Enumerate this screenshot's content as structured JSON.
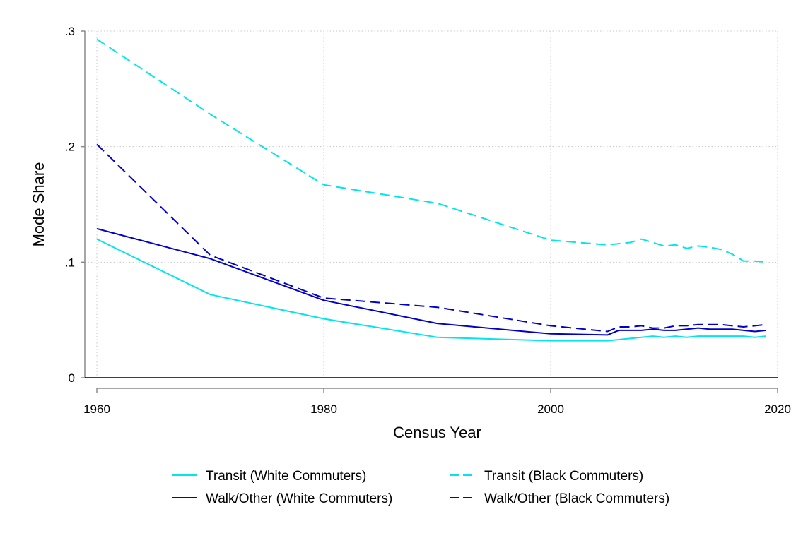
{
  "chart_data": {
    "type": "line",
    "xlabel": "Census Year",
    "ylabel": "Mode Share",
    "xlim": [
      1960,
      2020
    ],
    "ylim": [
      0,
      0.3
    ],
    "xticks": [
      1960,
      1980,
      2000,
      2020
    ],
    "xtick_labels": [
      "1960",
      "1980",
      "2000",
      "2020"
    ],
    "yticks": [
      0,
      0.1,
      0.2,
      0.3
    ],
    "ytick_labels": [
      "0",
      ".1",
      ".2",
      ".3"
    ],
    "grid": true,
    "legend_position": "bottom",
    "series": [
      {
        "name": "Transit (White Commuters)",
        "color": "#00e5ee",
        "dash": "solid",
        "x": [
          1960,
          1970,
          1980,
          1990,
          2000,
          2005,
          2006,
          2007,
          2008,
          2009,
          2010,
          2011,
          2012,
          2013,
          2014,
          2015,
          2016,
          2017,
          2018,
          2019
        ],
        "y": [
          0.12,
          0.072,
          0.051,
          0.035,
          0.032,
          0.032,
          0.033,
          0.034,
          0.035,
          0.036,
          0.035,
          0.036,
          0.035,
          0.036,
          0.036,
          0.036,
          0.036,
          0.036,
          0.035,
          0.036
        ]
      },
      {
        "name": "Transit (Black Commuters)",
        "color": "#00e5ee",
        "dash": "dashed",
        "x": [
          1960,
          1970,
          1980,
          1990,
          2000,
          2005,
          2006,
          2007,
          2008,
          2009,
          2010,
          2011,
          2012,
          2013,
          2014,
          2015,
          2016,
          2017,
          2018,
          2019
        ],
        "y": [
          0.293,
          0.228,
          0.167,
          0.151,
          0.119,
          0.115,
          0.116,
          0.117,
          0.12,
          0.117,
          0.114,
          0.115,
          0.112,
          0.114,
          0.113,
          0.111,
          0.107,
          0.101,
          0.101,
          0.1
        ]
      },
      {
        "name": "Walk/Other (White Commuters)",
        "color": "#0000cd",
        "dash": "solid",
        "x": [
          1960,
          1970,
          1980,
          1990,
          2000,
          2005,
          2006,
          2007,
          2008,
          2009,
          2010,
          2011,
          2012,
          2013,
          2014,
          2015,
          2016,
          2017,
          2018,
          2019
        ],
        "y": [
          0.129,
          0.103,
          0.067,
          0.047,
          0.038,
          0.037,
          0.041,
          0.041,
          0.041,
          0.042,
          0.041,
          0.041,
          0.042,
          0.043,
          0.042,
          0.042,
          0.042,
          0.041,
          0.04,
          0.041
        ]
      },
      {
        "name": "Walk/Other (Black Commuters)",
        "color": "#0000cd",
        "dash": "dashed",
        "x": [
          1960,
          1970,
          1980,
          1990,
          2000,
          2005,
          2006,
          2007,
          2008,
          2009,
          2010,
          2011,
          2012,
          2013,
          2014,
          2015,
          2016,
          2017,
          2018,
          2019
        ],
        "y": [
          0.202,
          0.106,
          0.069,
          0.061,
          0.045,
          0.04,
          0.044,
          0.044,
          0.045,
          0.043,
          0.043,
          0.045,
          0.045,
          0.046,
          0.046,
          0.046,
          0.045,
          0.044,
          0.045,
          0.046
        ]
      }
    ]
  }
}
